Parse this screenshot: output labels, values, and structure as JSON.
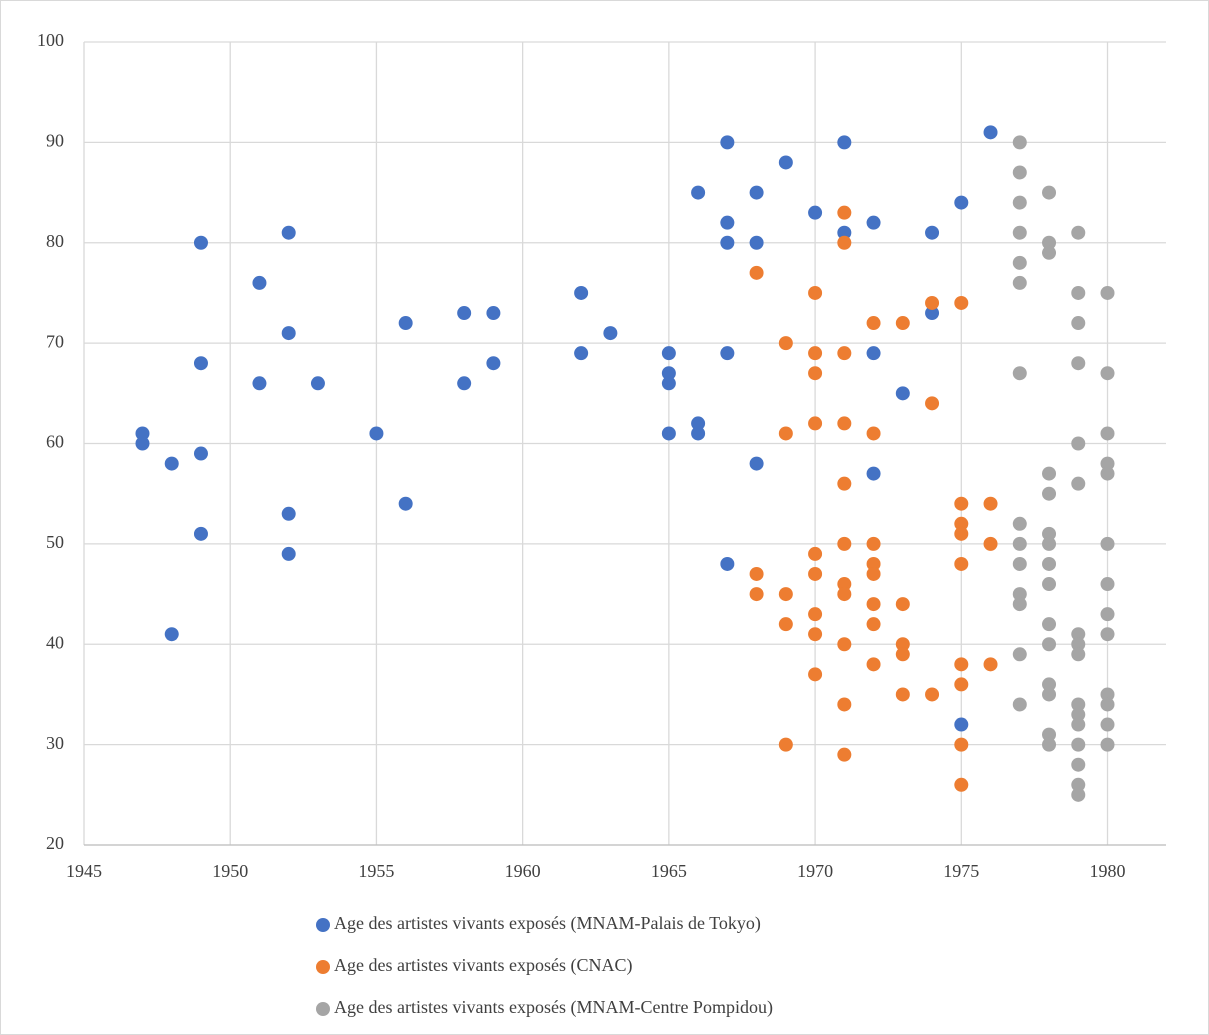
{
  "chart_data": {
    "type": "scatter",
    "xlim": [
      1945,
      1982
    ],
    "xticks": [
      1945,
      1950,
      1955,
      1960,
      1965,
      1970,
      1975,
      1980
    ],
    "ylim": [
      20,
      100
    ],
    "yticks": [
      20,
      30,
      40,
      50,
      60,
      70,
      80,
      90,
      100
    ],
    "grid": true,
    "legend": "bottom",
    "series": [
      {
        "name": "Age des artistes vivants exposés (MNAM-Palais de Tokyo)",
        "color": "#4472c4",
        "x": [
          1947,
          1947,
          1948,
          1948,
          1949,
          1949,
          1949,
          1949,
          1951,
          1951,
          1952,
          1952,
          1952,
          1952,
          1953,
          1955,
          1956,
          1956,
          1958,
          1958,
          1959,
          1959,
          1962,
          1962,
          1963,
          1965,
          1965,
          1965,
          1965,
          1966,
          1966,
          1966,
          1967,
          1967,
          1967,
          1967,
          1967,
          1968,
          1968,
          1968,
          1969,
          1970,
          1971,
          1971,
          1972,
          1972,
          1972,
          1973,
          1974,
          1974,
          1975,
          1975,
          1976
        ],
        "values": [
          61,
          60,
          58,
          41,
          80,
          68,
          59,
          51,
          76,
          66,
          81,
          71,
          53,
          49,
          66,
          61,
          72,
          54,
          73,
          66,
          73,
          68,
          75,
          69,
          71,
          69,
          67,
          66,
          61,
          85,
          62,
          61,
          90,
          82,
          80,
          69,
          48,
          85,
          80,
          58,
          88,
          83,
          90,
          81,
          82,
          69,
          57,
          65,
          81,
          73,
          84,
          32,
          91
        ]
      },
      {
        "name": "Age des artistes vivants exposés (CNAC)",
        "color": "#ed7d31",
        "x": [
          1968,
          1968,
          1968,
          1969,
          1969,
          1969,
          1969,
          1969,
          1970,
          1970,
          1970,
          1970,
          1970,
          1970,
          1970,
          1970,
          1970,
          1971,
          1971,
          1971,
          1971,
          1971,
          1971,
          1971,
          1971,
          1971,
          1971,
          1971,
          1972,
          1972,
          1972,
          1972,
          1972,
          1972,
          1972,
          1972,
          1973,
          1973,
          1973,
          1973,
          1973,
          1974,
          1974,
          1974,
          1975,
          1975,
          1975,
          1975,
          1975,
          1975,
          1975,
          1975,
          1975,
          1976,
          1976,
          1976
        ],
        "values": [
          77,
          47,
          45,
          70,
          61,
          45,
          42,
          30,
          75,
          69,
          67,
          62,
          49,
          47,
          43,
          41,
          37,
          83,
          80,
          69,
          62,
          56,
          50,
          46,
          45,
          40,
          34,
          29,
          72,
          61,
          50,
          48,
          47,
          44,
          42,
          38,
          72,
          44,
          40,
          39,
          35,
          74,
          64,
          35,
          74,
          54,
          52,
          51,
          48,
          38,
          36,
          30,
          26,
          54,
          50,
          38
        ]
      },
      {
        "name": "Age des artistes vivants exposés (MNAM-Centre Pompidou)",
        "color": "#a5a5a5",
        "x": [
          1977,
          1977,
          1977,
          1977,
          1977,
          1977,
          1977,
          1977,
          1977,
          1977,
          1977,
          1977,
          1977,
          1977,
          1978,
          1978,
          1978,
          1978,
          1978,
          1978,
          1978,
          1978,
          1978,
          1978,
          1978,
          1978,
          1978,
          1978,
          1978,
          1979,
          1979,
          1979,
          1979,
          1979,
          1979,
          1979,
          1979,
          1979,
          1979,
          1979,
          1979,
          1979,
          1979,
          1979,
          1979,
          1980,
          1980,
          1980,
          1980,
          1980,
          1980,
          1980,
          1980,
          1980,
          1980,
          1980,
          1980,
          1980
        ],
        "values": [
          90,
          87,
          84,
          81,
          78,
          76,
          67,
          52,
          50,
          48,
          45,
          44,
          39,
          34,
          85,
          80,
          79,
          57,
          55,
          51,
          50,
          48,
          46,
          42,
          40,
          36,
          35,
          31,
          30,
          81,
          75,
          72,
          68,
          60,
          56,
          41,
          40,
          39,
          34,
          33,
          32,
          30,
          28,
          26,
          25,
          75,
          67,
          61,
          58,
          57,
          50,
          46,
          43,
          41,
          35,
          34,
          32,
          30
        ]
      }
    ]
  }
}
